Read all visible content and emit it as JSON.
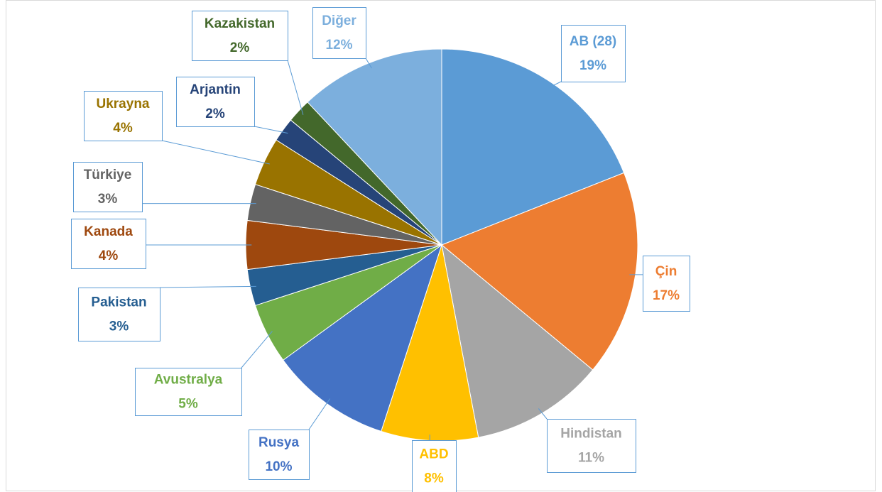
{
  "chart_data": {
    "type": "pie",
    "categories": [
      "AB (28)",
      "Çin",
      "Hindistan",
      "ABD",
      "Rusya",
      "Avustralya",
      "Pakistan",
      "Kanada",
      "Türkiye",
      "Ukrayna",
      "Arjantin",
      "Kazakistan",
      "Diğer"
    ],
    "values": [
      19,
      17,
      11,
      8,
      10,
      5,
      3,
      4,
      3,
      4,
      2,
      2,
      12
    ],
    "value_labels": [
      "19%",
      "17%",
      "11%",
      "8%",
      "10%",
      "5%",
      "3%",
      "4%",
      "3%",
      "4%",
      "2%",
      "2%",
      "12%"
    ],
    "colors": [
      "#5b9bd5",
      "#ed7d31",
      "#a5a5a5",
      "#ffc000",
      "#4472c4",
      "#70ad47",
      "#255e91",
      "#9e480e",
      "#636363",
      "#997300",
      "#264478",
      "#43682b",
      "#7cafdd"
    ]
  }
}
